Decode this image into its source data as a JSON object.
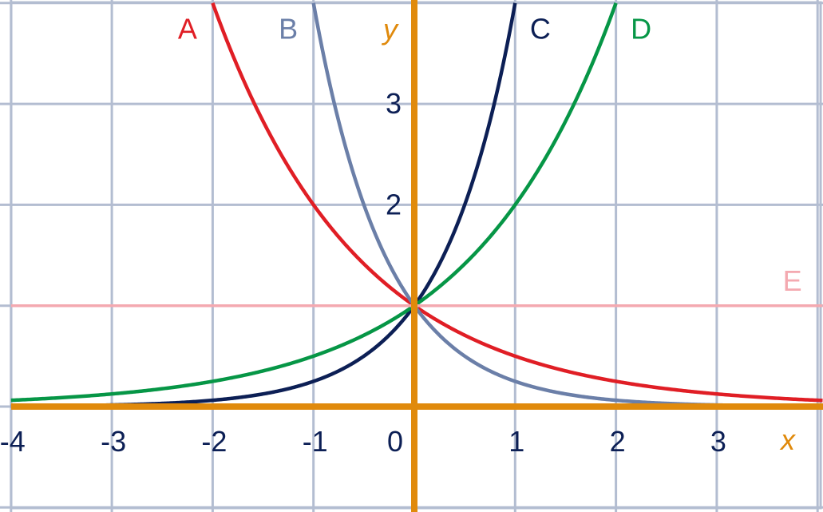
{
  "chart_data": {
    "type": "line",
    "title": "",
    "xlabel": "x",
    "ylabel": "y",
    "xlim": [
      -4,
      4.05
    ],
    "ylim": [
      -1,
      4
    ],
    "grid": true,
    "colors": {
      "grid": "#b3bdd1",
      "axes": "#e08a0c",
      "ticks": "#0c1f55"
    },
    "x_ticks": [
      {
        "value": -4,
        "label": "-4"
      },
      {
        "value": -3,
        "label": "-3"
      },
      {
        "value": -2,
        "label": "-2"
      },
      {
        "value": -1,
        "label": "-1"
      },
      {
        "value": 0,
        "label": "0"
      },
      {
        "value": 1,
        "label": "1"
      },
      {
        "value": 2,
        "label": "2"
      },
      {
        "value": 3,
        "label": "3"
      }
    ],
    "y_ticks": [
      {
        "value": 2,
        "label": "2"
      },
      {
        "value": 3,
        "label": "3"
      }
    ],
    "series": [
      {
        "name": "A",
        "color": "#e01e25",
        "base": 0.5,
        "x_range": [
          -2,
          4.05
        ],
        "label_pos": [
          -2.25,
          3.75
        ]
      },
      {
        "name": "B",
        "color": "#6b7fa8",
        "base": 0.25,
        "x_range": [
          -1,
          4.05
        ],
        "label_pos": [
          -1.25,
          3.75
        ]
      },
      {
        "name": "C",
        "color": "#0c1f55",
        "base": 4,
        "x_range": [
          -4,
          1
        ],
        "label_pos": [
          1.25,
          3.75
        ]
      },
      {
        "name": "D",
        "color": "#069646",
        "base": 2,
        "x_range": [
          -4,
          2
        ],
        "label_pos": [
          2.25,
          3.75
        ]
      },
      {
        "name": "E",
        "color": "#f4a9b0",
        "base": 1,
        "x_range": [
          -4,
          4.05
        ],
        "label_pos": [
          3.75,
          1.25
        ]
      }
    ]
  }
}
